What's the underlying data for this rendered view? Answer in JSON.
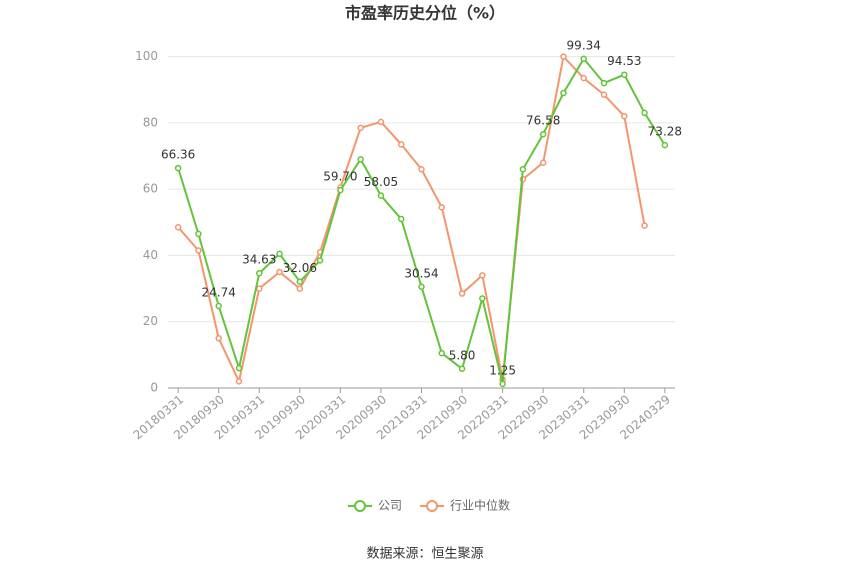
{
  "chart_data": {
    "type": "line",
    "title": "市盈率历史分位（%）",
    "categories": [
      "20180331",
      null,
      "20180930",
      null,
      "20190331",
      null,
      "20190930",
      null,
      "20200331",
      null,
      "20200930",
      null,
      "20210331",
      null,
      "20210930",
      null,
      "20220331",
      null,
      "20220930",
      null,
      "20230331",
      null,
      "20230930",
      null,
      "20240329"
    ],
    "series": [
      {
        "name": "公司",
        "color": "#62c43a",
        "values": [
          66.36,
          46.5,
          24.74,
          6,
          34.63,
          40.5,
          32.06,
          38.5,
          59.7,
          69,
          58.05,
          51,
          30.54,
          10.5,
          5.8,
          27,
          1.25,
          66,
          76.58,
          89,
          99.34,
          92,
          94.53,
          83,
          73.28
        ],
        "value_labels": [
          "66.36",
          null,
          "24.74",
          null,
          "34.63",
          null,
          "32.06",
          null,
          "59.70",
          null,
          "58.05",
          null,
          "30.54",
          null,
          "5.80",
          null,
          "1.25",
          null,
          "76.58",
          null,
          "99.34",
          null,
          "94.53",
          null,
          "73.28"
        ]
      },
      {
        "name": "行业中位数",
        "color": "#f4956c",
        "values": [
          48.5,
          41.5,
          15,
          2,
          30,
          35,
          30,
          41,
          60.5,
          78.5,
          80.3,
          73.5,
          66,
          54.5,
          28.5,
          34,
          2.5,
          63,
          68,
          100,
          93.5,
          88.5,
          82,
          49,
          null
        ]
      }
    ],
    "ylim": [
      0,
      105
    ],
    "yticks": [
      0,
      20,
      40,
      60,
      80,
      100
    ],
    "grid": true,
    "legend": "bottom",
    "source": "数据来源：恒生聚源"
  }
}
